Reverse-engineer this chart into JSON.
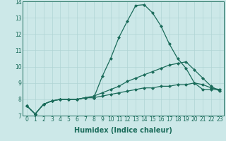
{
  "xlabel": "Humidex (Indice chaleur)",
  "x": [
    0,
    1,
    2,
    3,
    4,
    5,
    6,
    7,
    8,
    9,
    10,
    11,
    12,
    13,
    14,
    15,
    16,
    17,
    18,
    19,
    20,
    21,
    22,
    23
  ],
  "line1": [
    7.6,
    7.1,
    7.7,
    7.9,
    8.0,
    8.0,
    8.0,
    8.1,
    8.1,
    9.4,
    10.5,
    11.8,
    12.8,
    13.75,
    13.8,
    13.3,
    12.5,
    11.4,
    10.5,
    9.9,
    9.0,
    8.6,
    8.6,
    8.6
  ],
  "line2": [
    7.6,
    7.1,
    7.7,
    7.9,
    8.0,
    8.0,
    8.0,
    8.1,
    8.2,
    8.4,
    8.6,
    8.8,
    9.1,
    9.3,
    9.5,
    9.7,
    9.9,
    10.1,
    10.2,
    10.3,
    9.8,
    9.3,
    8.8,
    8.5
  ],
  "line3": [
    7.6,
    7.1,
    7.7,
    7.9,
    8.0,
    8.0,
    8.0,
    8.1,
    8.1,
    8.2,
    8.3,
    8.4,
    8.5,
    8.6,
    8.7,
    8.7,
    8.8,
    8.8,
    8.9,
    8.9,
    9.0,
    8.9,
    8.7,
    8.6
  ],
  "line_color": "#1a6b5a",
  "bg_color": "#cce8e8",
  "grid_color": "#b0d4d4",
  "ylim": [
    7,
    14
  ],
  "xlim": [
    -0.5,
    23.5
  ],
  "yticks": [
    7,
    8,
    9,
    10,
    11,
    12,
    13,
    14
  ],
  "xticks": [
    0,
    1,
    2,
    3,
    4,
    5,
    6,
    7,
    8,
    9,
    10,
    11,
    12,
    13,
    14,
    15,
    16,
    17,
    18,
    19,
    20,
    21,
    22,
    23
  ],
  "tick_fontsize": 5.5,
  "xlabel_fontsize": 7.0,
  "marker": "D",
  "marker_size": 2.0,
  "linewidth": 0.9
}
